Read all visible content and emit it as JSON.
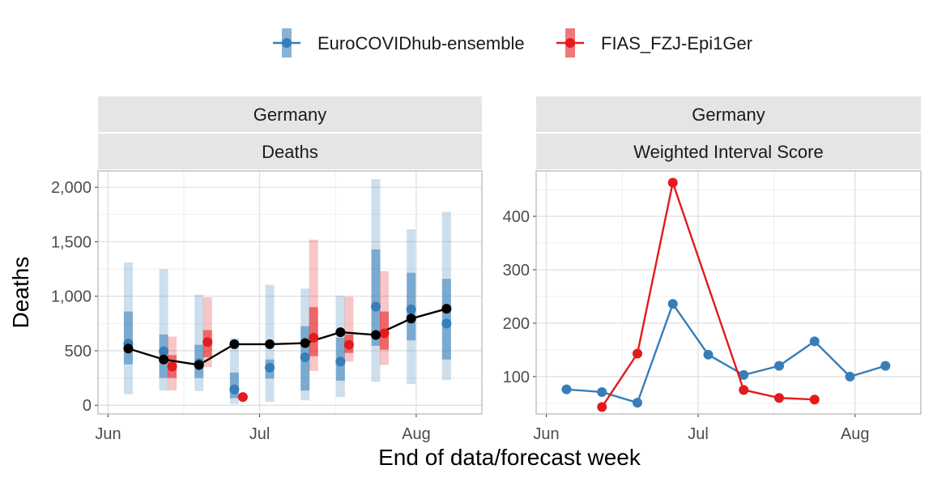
{
  "colors": {
    "ensemble": "#377eb8",
    "fias": "#e41a1c",
    "observed": "#000000",
    "strip_bg": "#e5e5e5",
    "grid_major": "#dedede",
    "grid_minor": "#efefef",
    "panel_border": "#b3b3b3"
  },
  "legend": {
    "items": [
      {
        "label": "EuroCOVIDhub-ensemble",
        "color": "#377eb8"
      },
      {
        "label": "FIAS_FZJ-Epi1Ger",
        "color": "#e41a1c"
      }
    ]
  },
  "axis": {
    "x_title": "End of data/forecast week",
    "x_ticks": [
      "Jun",
      "Jul",
      "Aug"
    ]
  },
  "chart_data": [
    {
      "type": "line",
      "strip": [
        "Germany",
        "Deaths"
      ],
      "ylabel": "Deaths",
      "xlabel": "End of data/forecast week",
      "xlim": [
        "2021-05-30",
        "2021-08-14"
      ],
      "ylim": [
        -80,
        2150
      ],
      "y_ticks": [
        {
          "value": 0,
          "label": "0"
        },
        {
          "value": 500,
          "label": "500"
        },
        {
          "value": 1000,
          "label": "1,000"
        },
        {
          "value": 1500,
          "label": "1,500"
        },
        {
          "value": 2000,
          "label": "2,000"
        }
      ],
      "observed": {
        "dates": [
          "2021-06-05",
          "2021-06-12",
          "2021-06-19",
          "2021-06-26",
          "2021-07-03",
          "2021-07-10",
          "2021-07-17",
          "2021-07-24",
          "2021-07-31",
          "2021-08-07"
        ],
        "values": [
          520,
          420,
          370,
          560,
          560,
          570,
          670,
          645,
          795,
          885
        ]
      },
      "forecasts": [
        {
          "model": "EuroCOVIDhub-ensemble",
          "dates": [
            "2021-06-05",
            "2021-06-12",
            "2021-06-19",
            "2021-06-26",
            "2021-07-03",
            "2021-07-10",
            "2021-07-17",
            "2021-07-24",
            "2021-07-31",
            "2021-08-07"
          ],
          "median": [
            565,
            495,
            385,
            145,
            345,
            440,
            400,
            905,
            880,
            750
          ],
          "lower_50": [
            375,
            250,
            250,
            65,
            245,
            135,
            225,
            545,
            595,
            420
          ],
          "upper_50": [
            860,
            650,
            555,
            300,
            420,
            725,
            620,
            1430,
            1215,
            1160
          ],
          "lower_90": [
            100,
            135,
            130,
            10,
            30,
            45,
            75,
            215,
            195,
            230
          ],
          "upper_90": [
            1310,
            1250,
            1015,
            615,
            1105,
            1070,
            1005,
            2075,
            1615,
            1775
          ]
        },
        {
          "model": "FIAS_FZJ-Epi1Ger",
          "dates": [
            "2021-06-12",
            "2021-06-19",
            "2021-06-26",
            "2021-07-10",
            "2021-07-17",
            "2021-07-24"
          ],
          "median": [
            355,
            580,
            75,
            620,
            555,
            660
          ],
          "lower_50": [
            250,
            440,
            null,
            450,
            480,
            510
          ],
          "upper_50": [
            460,
            690,
            null,
            900,
            650,
            860
          ],
          "lower_90": [
            135,
            350,
            null,
            315,
            400,
            370
          ],
          "upper_90": [
            630,
            990,
            null,
            1520,
            995,
            1230
          ]
        }
      ]
    },
    {
      "type": "line",
      "strip": [
        "Germany",
        "Weighted Interval Score"
      ],
      "ylabel": "",
      "xlabel": "End of data/forecast week",
      "xlim": [
        "2021-05-30",
        "2021-08-14"
      ],
      "ylim": [
        30,
        485
      ],
      "y_ticks": [
        {
          "value": 100,
          "label": "100"
        },
        {
          "value": 200,
          "label": "200"
        },
        {
          "value": 300,
          "label": "300"
        },
        {
          "value": 400,
          "label": "400"
        }
      ],
      "series": [
        {
          "name": "EuroCOVIDhub-ensemble",
          "dates": [
            "2021-06-05",
            "2021-06-12",
            "2021-06-19",
            "2021-06-26",
            "2021-07-03",
            "2021-07-10",
            "2021-07-17",
            "2021-07-24",
            "2021-07-31",
            "2021-08-07"
          ],
          "values": [
            76,
            71,
            51,
            236,
            141,
            103,
            120,
            166,
            100,
            120
          ]
        },
        {
          "name": "FIAS_FZJ-Epi1Ger",
          "dates": [
            "2021-06-12",
            "2021-06-19",
            "2021-06-26",
            "2021-07-10",
            "2021-07-17",
            "2021-07-24"
          ],
          "values": [
            43,
            143,
            463,
            75,
            60,
            57
          ]
        }
      ]
    }
  ]
}
